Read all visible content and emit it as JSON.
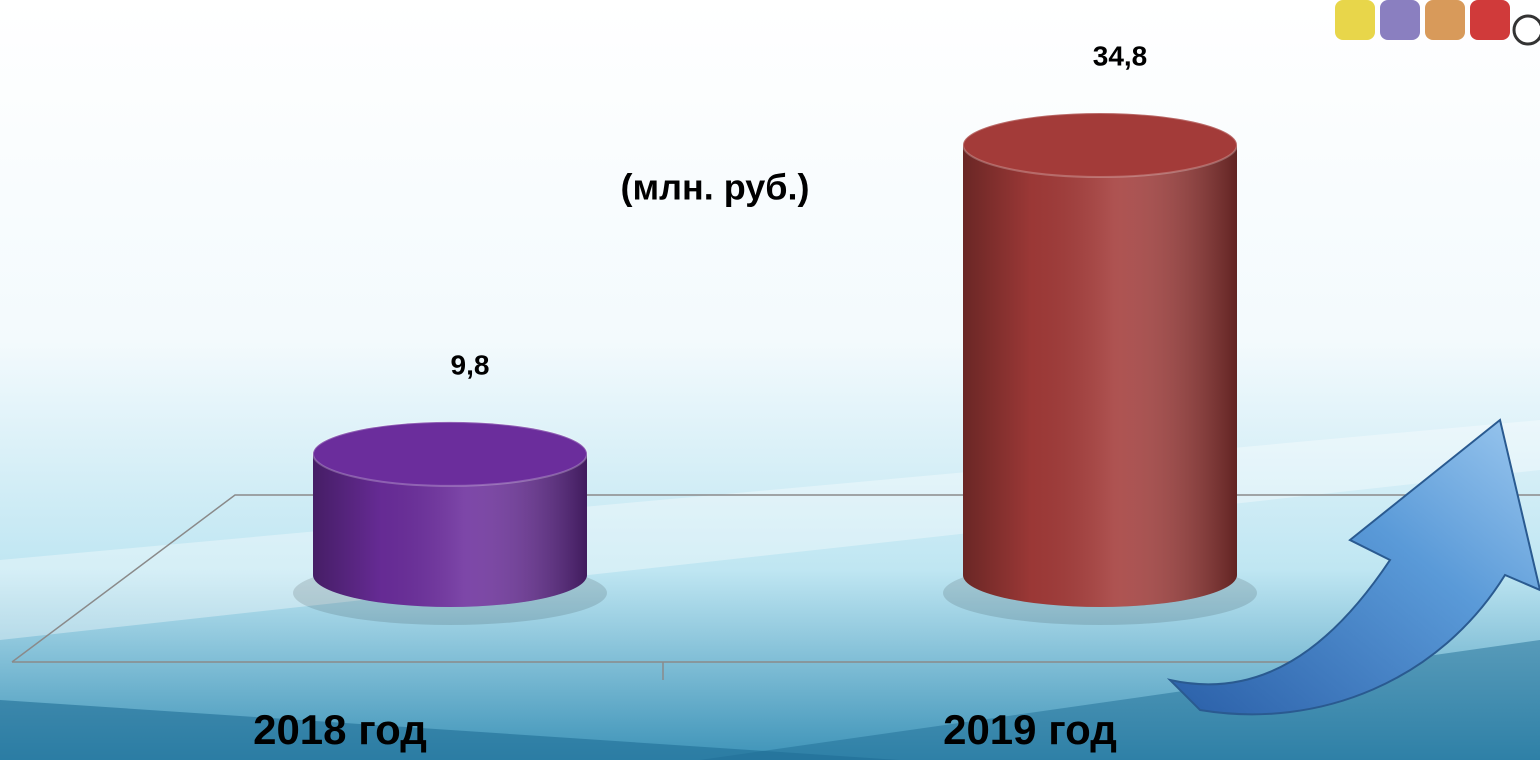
{
  "chart_data": {
    "type": "cylinder",
    "annotation": "(млн. руб.)",
    "categories": [
      "2018 год",
      "2019 год"
    ],
    "values": [
      9.8,
      34.8
    ],
    "value_labels": [
      "9,8",
      "34,8"
    ],
    "colors": [
      "#6b2d9c",
      "#a33b39"
    ]
  }
}
